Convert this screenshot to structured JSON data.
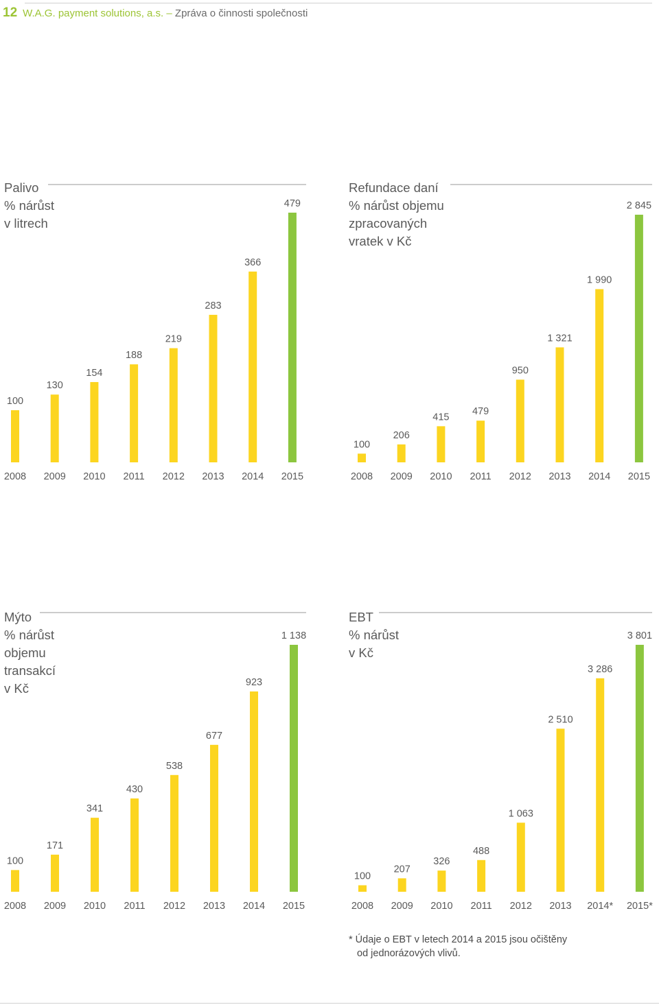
{
  "header": {
    "page_number": "12",
    "company": "W.A.G. payment solutions, a.s.",
    "dash": "–",
    "title": "Zpráva o činnosti společnosti"
  },
  "colors": {
    "bar_yellow": "#fcd520",
    "bar_green": "#8cc63f",
    "text": "#5a5a5a"
  },
  "footnote": {
    "line1": "* Údaje o EBT v letech 2014 a 2015 jsou očištěny",
    "line2": "od jednorázových vlivů."
  },
  "chart_data": [
    {
      "type": "bar",
      "title": [
        "Palivo",
        "% nárůst",
        "v litrech"
      ],
      "categories": [
        "2008",
        "2009",
        "2010",
        "2011",
        "2012",
        "2013",
        "2014",
        "2015"
      ],
      "values": [
        100,
        130,
        154,
        188,
        219,
        283,
        366,
        479
      ],
      "value_labels": [
        "100",
        "130",
        "154",
        "188",
        "219",
        "283",
        "366",
        "479"
      ],
      "highlight_last": true,
      "ylim": [
        0,
        500
      ]
    },
    {
      "type": "bar",
      "title": [
        "Refundace daní",
        "% nárůst objemu",
        "zpracovaných",
        "vratek v Kč"
      ],
      "categories": [
        "2008",
        "2009",
        "2010",
        "2011",
        "2012",
        "2013",
        "2014",
        "2015"
      ],
      "values": [
        100,
        206,
        415,
        479,
        950,
        1321,
        1990,
        2845
      ],
      "value_labels": [
        "100",
        "206",
        "415",
        "479",
        "950",
        "1 321",
        "1 990",
        "2 845"
      ],
      "highlight_last": true,
      "ylim": [
        0,
        3000
      ]
    },
    {
      "type": "bar",
      "title": [
        "Mýto",
        "% nárůst",
        "objemu",
        "transakcí",
        "v Kč"
      ],
      "categories": [
        "2008",
        "2009",
        "2010",
        "2011",
        "2012",
        "2013",
        "2014",
        "2015"
      ],
      "values": [
        100,
        171,
        341,
        430,
        538,
        677,
        923,
        1138
      ],
      "value_labels": [
        "100",
        "171",
        "341",
        "430",
        "538",
        "677",
        "923",
        "1 138"
      ],
      "highlight_last": true,
      "ylim": [
        0,
        1200
      ]
    },
    {
      "type": "bar",
      "title": [
        "EBT",
        "% nárůst",
        "v Kč"
      ],
      "categories": [
        "2008",
        "2009",
        "2010",
        "2011",
        "2012",
        "2013",
        "2014*",
        "2015*"
      ],
      "values": [
        100,
        207,
        326,
        488,
        1063,
        2510,
        3286,
        3801
      ],
      "value_labels": [
        "100",
        "207",
        "326",
        "488",
        "1 063",
        "2 510",
        "3 286",
        "3 801"
      ],
      "highlight_last": true,
      "ylim": [
        0,
        4000
      ]
    }
  ]
}
